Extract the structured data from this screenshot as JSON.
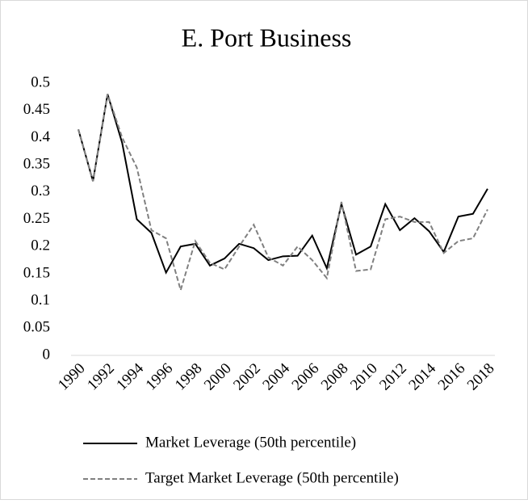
{
  "chart_data": {
    "type": "line",
    "title": "E. Port Business",
    "categories": [
      "1990",
      null,
      "1992",
      null,
      "1994",
      null,
      "1996",
      null,
      "1998",
      null,
      "2000",
      null,
      "2002",
      null,
      "2004",
      null,
      "2006",
      null,
      "2008",
      null,
      "2010",
      null,
      "2012",
      null,
      "2014",
      null,
      "2016",
      null,
      "2018"
    ],
    "series": [
      {
        "name": "Market Leverage (50th percentile)",
        "color": "#000000",
        "dash": false,
        "values": [
          0.415,
          0.32,
          0.48,
          0.39,
          0.25,
          0.225,
          0.152,
          0.2,
          0.205,
          0.165,
          0.178,
          0.205,
          0.197,
          0.175,
          0.182,
          0.183,
          0.22,
          0.16,
          0.278,
          0.185,
          0.2,
          0.278,
          0.23,
          0.252,
          0.228,
          0.19,
          0.255,
          0.26,
          0.306
        ]
      },
      {
        "name": "Target Market Leverage (50th percentile)",
        "color": "#808080",
        "dash": true,
        "values": [
          0.415,
          0.32,
          0.48,
          0.4,
          0.345,
          0.23,
          0.215,
          0.12,
          0.21,
          0.17,
          0.158,
          0.2,
          0.24,
          0.18,
          0.165,
          0.2,
          0.175,
          0.142,
          0.282,
          0.155,
          0.158,
          0.25,
          0.255,
          0.245,
          0.245,
          0.188,
          0.21,
          0.215,
          0.268
        ]
      }
    ],
    "ylim": [
      0,
      0.5
    ],
    "yticks": [
      0,
      0.05,
      0.1,
      0.15,
      0.2,
      0.25,
      0.3,
      0.35,
      0.4,
      0.45,
      0.5
    ],
    "grid": false,
    "legend": "bottom"
  }
}
